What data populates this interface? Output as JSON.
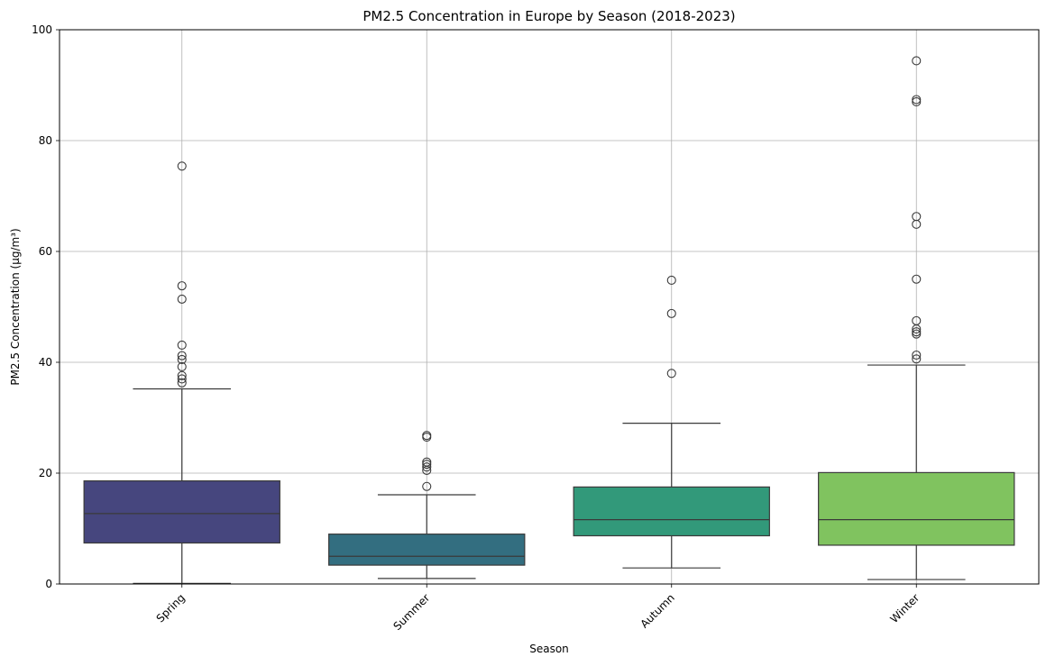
{
  "chart_data": {
    "type": "box",
    "title": "PM2.5 Concentration in Europe by Season (2018-2023)",
    "xlabel": "Season",
    "ylabel": "PM2.5 Concentration (µg/m³)",
    "ylim": [
      0,
      100
    ],
    "yticks": [
      0,
      20,
      40,
      60,
      80,
      100
    ],
    "grid": true,
    "categories": [
      "Spring",
      "Summer",
      "Autumn",
      "Winter"
    ],
    "x_tick_rotation": 45,
    "series": [
      {
        "category": "Spring",
        "whisker_low": 0.1,
        "q1": 7.4,
        "median": 12.7,
        "q3": 18.6,
        "whisker_high": 35.2,
        "outliers": [
          36.3,
          37.0,
          37.6,
          39.2,
          40.5,
          41.2,
          43.1,
          51.4,
          53.8,
          75.4
        ],
        "color": "#46467e"
      },
      {
        "category": "Summer",
        "whisker_low": 1.0,
        "q1": 3.4,
        "median": 5.0,
        "q3": 9.0,
        "whisker_high": 16.1,
        "outliers": [
          17.6,
          20.5,
          21.1,
          21.6,
          22.0,
          26.5,
          26.8
        ],
        "color": "#336e80"
      },
      {
        "category": "Autumn",
        "whisker_low": 2.9,
        "q1": 8.7,
        "median": 11.6,
        "q3": 17.5,
        "whisker_high": 29.0,
        "outliers": [
          38.0,
          48.8,
          54.8
        ],
        "color": "#32997a"
      },
      {
        "category": "Winter",
        "whisker_low": 0.8,
        "q1": 7.0,
        "median": 11.6,
        "q3": 20.1,
        "whisker_high": 39.5,
        "outliers": [
          40.6,
          41.3,
          45.1,
          45.5,
          46.0,
          47.5,
          55.0,
          64.9,
          66.3,
          87.0,
          87.4,
          94.4
        ],
        "color": "#80c35f"
      }
    ]
  }
}
